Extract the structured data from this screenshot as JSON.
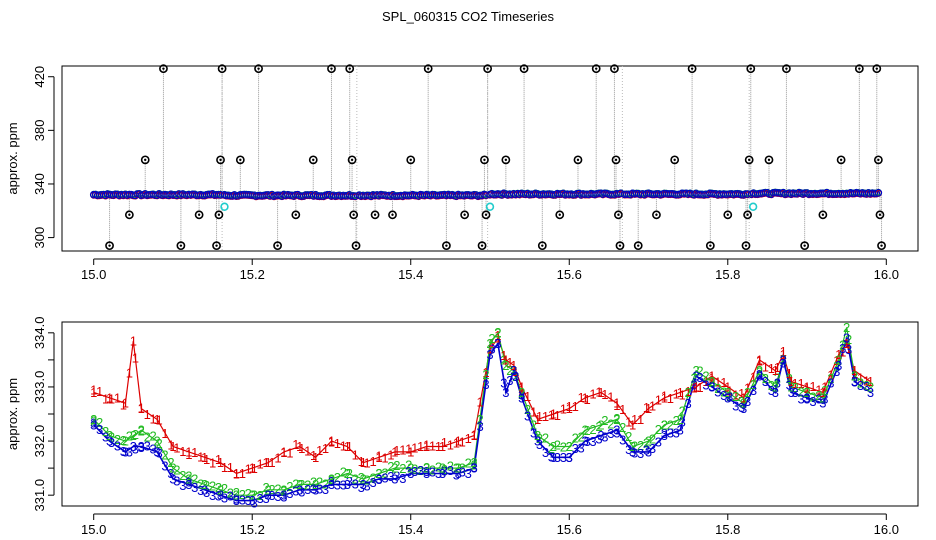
{
  "title": "SPL_060315  CO2 Timeseries",
  "colors": {
    "series1": "#dd0000",
    "series2": "#22bb22",
    "series3": "#0000cc",
    "outlier": "#000000",
    "flag": "#22cccc",
    "vline": "#999999"
  },
  "chart_data": [
    {
      "type": "scatter",
      "title": "SPL_060315  CO2 Timeseries",
      "xlabel": "",
      "ylabel": "approx. ppm",
      "xlim": [
        14.96,
        16.04
      ],
      "ylim": [
        290,
        428
      ],
      "xticks": [
        15.0,
        15.2,
        15.4,
        15.6,
        15.8,
        16.0
      ],
      "xtick_labels": [
        "15.0",
        "15.2",
        "15.4",
        "15.6",
        "15.8",
        "16.0"
      ],
      "yticks": [
        300,
        340,
        380,
        420
      ],
      "ytick_labels": [
        "300",
        "340",
        "380",
        "420"
      ],
      "baseline_segments": [
        {
          "x_start": 15.0,
          "x_end": 15.16,
          "value": 332
        },
        {
          "x_start": 15.165,
          "x_end": 15.33,
          "value": 331.5
        },
        {
          "x_start": 15.335,
          "x_end": 15.495,
          "value": 331.5
        },
        {
          "x_start": 15.5,
          "x_end": 15.665,
          "value": 332.5
        },
        {
          "x_start": 15.67,
          "x_end": 15.825,
          "value": 332.5
        },
        {
          "x_start": 15.83,
          "x_end": 15.99,
          "value": 333
        }
      ],
      "outliers": [
        {
          "x": 15.02,
          "y": 294
        },
        {
          "x": 15.045,
          "y": 317
        },
        {
          "x": 15.065,
          "y": 358
        },
        {
          "x": 15.088,
          "y": 426
        },
        {
          "x": 15.11,
          "y": 294
        },
        {
          "x": 15.133,
          "y": 317
        },
        {
          "x": 15.155,
          "y": 294
        },
        {
          "x": 15.158,
          "y": 317
        },
        {
          "x": 15.16,
          "y": 358
        },
        {
          "x": 15.162,
          "y": 426
        },
        {
          "x": 15.185,
          "y": 358
        },
        {
          "x": 15.208,
          "y": 426
        },
        {
          "x": 15.232,
          "y": 294
        },
        {
          "x": 15.255,
          "y": 317
        },
        {
          "x": 15.277,
          "y": 358
        },
        {
          "x": 15.3,
          "y": 426
        },
        {
          "x": 15.323,
          "y": 426
        },
        {
          "x": 15.326,
          "y": 358
        },
        {
          "x": 15.328,
          "y": 317
        },
        {
          "x": 15.331,
          "y": 294
        },
        {
          "x": 15.355,
          "y": 317
        },
        {
          "x": 15.377,
          "y": 317
        },
        {
          "x": 15.4,
          "y": 358
        },
        {
          "x": 15.422,
          "y": 426
        },
        {
          "x": 15.445,
          "y": 294
        },
        {
          "x": 15.468,
          "y": 317
        },
        {
          "x": 15.49,
          "y": 294
        },
        {
          "x": 15.493,
          "y": 358
        },
        {
          "x": 15.495,
          "y": 317
        },
        {
          "x": 15.497,
          "y": 426
        },
        {
          "x": 15.52,
          "y": 358
        },
        {
          "x": 15.543,
          "y": 426
        },
        {
          "x": 15.566,
          "y": 294
        },
        {
          "x": 15.588,
          "y": 317
        },
        {
          "x": 15.611,
          "y": 358
        },
        {
          "x": 15.634,
          "y": 426
        },
        {
          "x": 15.657,
          "y": 426
        },
        {
          "x": 15.659,
          "y": 358
        },
        {
          "x": 15.662,
          "y": 317
        },
        {
          "x": 15.664,
          "y": 294
        },
        {
          "x": 15.687,
          "y": 294
        },
        {
          "x": 15.71,
          "y": 317
        },
        {
          "x": 15.733,
          "y": 358
        },
        {
          "x": 15.755,
          "y": 426
        },
        {
          "x": 15.778,
          "y": 294
        },
        {
          "x": 15.8,
          "y": 317
        },
        {
          "x": 15.823,
          "y": 294
        },
        {
          "x": 15.825,
          "y": 317
        },
        {
          "x": 15.827,
          "y": 358
        },
        {
          "x": 15.829,
          "y": 426
        },
        {
          "x": 15.852,
          "y": 358
        },
        {
          "x": 15.874,
          "y": 426
        },
        {
          "x": 15.897,
          "y": 294
        },
        {
          "x": 15.92,
          "y": 317
        },
        {
          "x": 15.943,
          "y": 358
        },
        {
          "x": 15.966,
          "y": 426
        },
        {
          "x": 15.988,
          "y": 426
        },
        {
          "x": 15.99,
          "y": 358
        },
        {
          "x": 15.992,
          "y": 317
        },
        {
          "x": 15.994,
          "y": 294
        }
      ],
      "flagged_points": [
        {
          "x": 15.165,
          "y": 323
        },
        {
          "x": 15.5,
          "y": 323
        },
        {
          "x": 15.832,
          "y": 323
        }
      ]
    },
    {
      "type": "line",
      "title": "",
      "xlabel": "",
      "ylabel": "approx. ppm",
      "xlim": [
        14.96,
        16.04
      ],
      "ylim": [
        330.8,
        334.2
      ],
      "xticks": [
        15.0,
        15.2,
        15.4,
        15.6,
        15.8,
        16.0
      ],
      "xtick_labels": [
        "15.0",
        "15.2",
        "15.4",
        "15.6",
        "15.8",
        "16.0"
      ],
      "yticks": [
        331.0,
        331.5,
        332.0,
        332.5,
        333.0,
        333.5,
        334.0
      ],
      "ytick_labels": [
        "331.0",
        "",
        "332.0",
        "",
        "333.0",
        "",
        "334.0"
      ],
      "x": [
        15.0,
        15.02,
        15.04,
        15.05,
        15.06,
        15.08,
        15.1,
        15.12,
        15.14,
        15.16,
        15.18,
        15.2,
        15.22,
        15.24,
        15.26,
        15.28,
        15.3,
        15.32,
        15.34,
        15.36,
        15.38,
        15.4,
        15.42,
        15.44,
        15.46,
        15.48,
        15.5,
        15.51,
        15.52,
        15.53,
        15.54,
        15.56,
        15.58,
        15.6,
        15.62,
        15.64,
        15.66,
        15.68,
        15.7,
        15.72,
        15.74,
        15.76,
        15.78,
        15.8,
        15.82,
        15.84,
        15.86,
        15.87,
        15.88,
        15.9,
        15.92,
        15.94,
        15.95,
        15.96,
        15.98
      ],
      "series": [
        {
          "name": "1",
          "values": [
            332.9,
            332.8,
            332.7,
            333.85,
            332.6,
            332.4,
            331.9,
            331.8,
            331.7,
            331.6,
            331.4,
            331.5,
            331.6,
            331.8,
            331.9,
            331.7,
            332.0,
            331.9,
            331.6,
            331.7,
            331.8,
            331.8,
            331.9,
            331.9,
            332.0,
            332.1,
            333.7,
            333.9,
            333.5,
            333.4,
            333.0,
            332.4,
            332.5,
            332.6,
            332.8,
            332.9,
            332.7,
            332.3,
            332.6,
            332.8,
            332.9,
            333.0,
            333.2,
            333.0,
            332.8,
            333.5,
            333.3,
            333.6,
            333.1,
            333.0,
            332.9,
            333.6,
            333.8,
            333.3,
            333.1
          ]
        },
        {
          "name": "2",
          "values": [
            332.4,
            332.1,
            332.0,
            332.1,
            332.2,
            332.0,
            331.5,
            331.3,
            331.2,
            331.1,
            331.0,
            331.0,
            331.1,
            331.1,
            331.2,
            331.2,
            331.3,
            331.4,
            331.3,
            331.4,
            331.5,
            331.5,
            331.5,
            331.5,
            331.5,
            331.6,
            333.8,
            334.0,
            333.4,
            333.3,
            332.9,
            332.1,
            331.9,
            331.9,
            332.2,
            332.3,
            332.4,
            331.9,
            332.0,
            332.3,
            332.4,
            333.3,
            333.1,
            332.9,
            332.7,
            333.3,
            333.0,
            333.5,
            333.0,
            332.9,
            332.8,
            333.5,
            334.1,
            333.2,
            333.0
          ]
        },
        {
          "name": "3",
          "values": [
            332.3,
            332.0,
            331.8,
            331.9,
            331.9,
            331.8,
            331.3,
            331.2,
            331.1,
            331.0,
            330.9,
            330.9,
            331.0,
            331.0,
            331.1,
            331.1,
            331.2,
            331.2,
            331.2,
            331.3,
            331.3,
            331.4,
            331.4,
            331.4,
            331.4,
            331.5,
            333.6,
            333.8,
            332.9,
            333.3,
            332.8,
            332.0,
            331.7,
            331.7,
            332.0,
            332.1,
            332.2,
            331.8,
            331.8,
            332.1,
            332.2,
            333.2,
            333.0,
            332.8,
            332.6,
            333.2,
            332.9,
            333.5,
            332.9,
            332.8,
            332.7,
            333.4,
            333.9,
            333.1,
            332.9
          ]
        }
      ]
    }
  ]
}
